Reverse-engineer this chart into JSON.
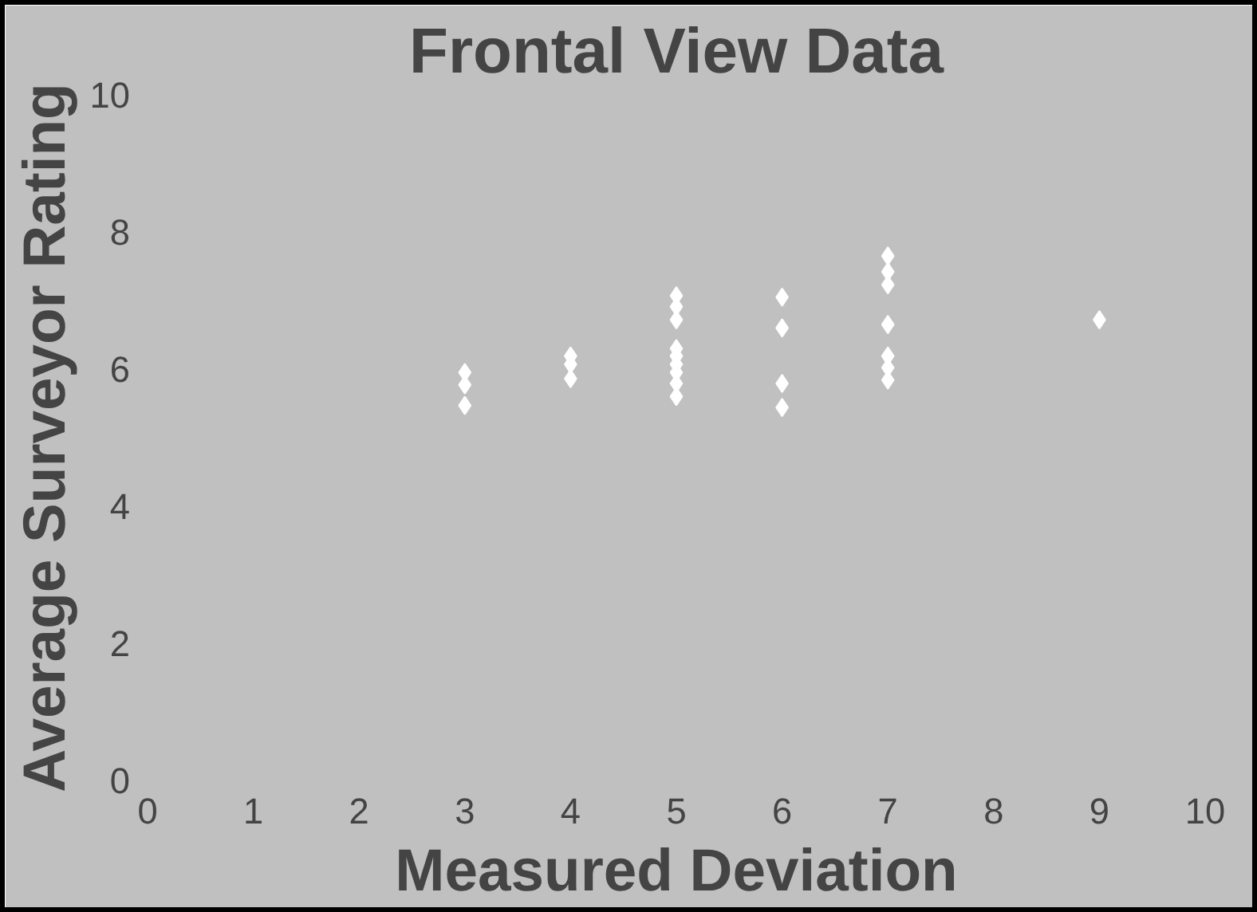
{
  "chart_data": {
    "type": "scatter",
    "title": "Frontal View Data",
    "xlabel": "Measured Deviation",
    "ylabel": "Average Surveyor Rating",
    "marker": "diamond",
    "grid": false,
    "x": [
      3,
      3,
      3,
      4,
      4,
      4,
      5,
      5,
      5,
      5,
      5,
      5,
      5,
      5,
      5,
      6,
      6,
      6,
      6,
      7,
      7,
      7,
      7,
      7,
      7,
      7,
      9
    ],
    "series": [
      {
        "color": "#ffffff",
        "values": [
          5.95,
          5.77,
          5.47,
          6.19,
          6.07,
          5.86,
          7.07,
          6.91,
          6.72,
          6.3,
          6.19,
          6.07,
          5.95,
          5.79,
          5.6,
          7.05,
          6.6,
          5.79,
          5.44,
          7.65,
          7.42,
          7.23,
          6.65,
          6.19,
          6.02,
          5.84,
          6.72
        ]
      }
    ],
    "xlim": [
      0,
      10
    ],
    "ylim": [
      0,
      10
    ],
    "xticks": [
      0,
      1,
      2,
      3,
      4,
      5,
      6,
      7,
      8,
      9,
      10
    ],
    "yticks": [
      0,
      2,
      4,
      6,
      8,
      10
    ]
  }
}
